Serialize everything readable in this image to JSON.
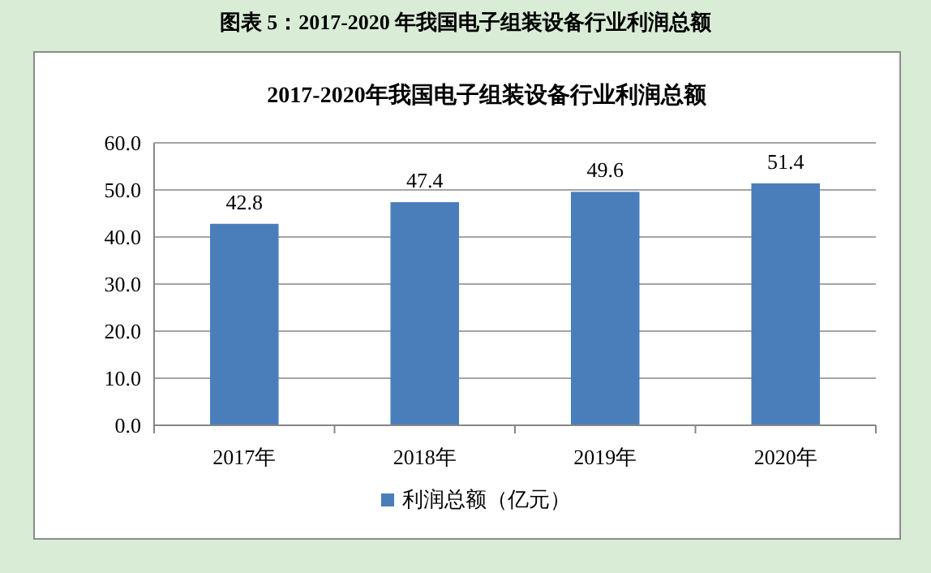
{
  "chart_data": {
    "type": "bar",
    "title": "2017-2020年我国电子组装设备行业利润总额",
    "annotations": [
      "图表 5：2017-2020 年我国电子组装设备行业利润总额"
    ],
    "categories": [
      "2017年",
      "2018年",
      "2019年",
      "2020年"
    ],
    "series": [
      {
        "name": "利润总额（亿元）",
        "color": "#4a7ebb",
        "values": [
          42.8,
          47.4,
          49.6,
          51.4
        ]
      }
    ],
    "ylim": [
      0,
      60
    ],
    "yticks": [
      {
        "value": 0,
        "label": "0.0"
      },
      {
        "value": 10,
        "label": "10.0"
      },
      {
        "value": 20,
        "label": "20.0"
      },
      {
        "value": 30,
        "label": "30.0"
      },
      {
        "value": 40,
        "label": "40.0"
      },
      {
        "value": 50,
        "label": "50.0"
      },
      {
        "value": 60,
        "label": "60.0"
      }
    ],
    "grid": "y",
    "legend": "bottom",
    "data_labels": true
  }
}
